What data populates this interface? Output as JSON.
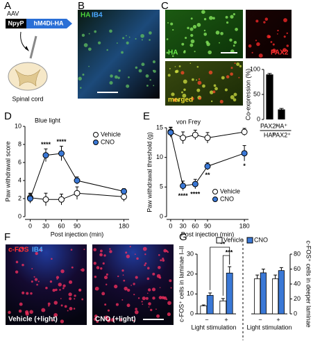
{
  "figure": {
    "panel_labels": [
      "A",
      "B",
      "C",
      "D",
      "E",
      "F",
      "G"
    ],
    "panel_a": {
      "vector": "AAV",
      "promoter": "NpyP",
      "construct": "hM4Di-HA",
      "target": "Spinal cord"
    },
    "panel_b": {
      "stain_1": "HA",
      "stain_2": "IB4"
    },
    "panel_c": {
      "image_1": "HA",
      "image_2": "PAX2",
      "image_3": "merged"
    },
    "panel_f": {
      "stain_1": "c-FOS",
      "stain_2": "IB4",
      "image_1": "Vehicle (+light)",
      "image_2": "CNO (+light)"
    }
  },
  "chart_data": [
    {
      "type": "bar",
      "ylabel": "Co-expression (%)",
      "color": "#000000",
      "categories": [
        {
          "top": "PAX2⁺",
          "bottom": "HA⁺"
        },
        {
          "top": "HA⁺",
          "bottom": "PAX2⁺"
        }
      ],
      "values": [
        90,
        20
      ],
      "errors": [
        2,
        2
      ],
      "ylim": [
        0,
        100
      ],
      "yticks": [
        0,
        50,
        100
      ]
    },
    {
      "type": "line",
      "title": "Blue light",
      "xlabel": "Post injection (min)",
      "ylabel": "Paw withdrawal score",
      "x": [
        0,
        30,
        60,
        90,
        180
      ],
      "xlim": [
        -10,
        190
      ],
      "xticks": [
        0,
        30,
        60,
        90,
        180
      ],
      "ylim": [
        0,
        10
      ],
      "yticks": [
        0,
        2,
        4,
        6,
        8,
        10
      ],
      "legend": "upper right",
      "series": [
        {
          "name": "Vehicle",
          "color": "#ffffff",
          "values": [
            2.1,
            1.9,
            1.9,
            2.6,
            2.2
          ],
          "errors": [
            0.5,
            0.7,
            0.6,
            0.7,
            0.5
          ]
        },
        {
          "name": "CNO",
          "color": "#3a78d6",
          "values": [
            2.0,
            6.8,
            7.0,
            4.0,
            2.8
          ],
          "errors": [
            0.5,
            0.7,
            0.8,
            0.4,
            0.3
          ],
          "annotations": [
            null,
            "****",
            "****",
            null,
            null
          ]
        }
      ]
    },
    {
      "type": "line",
      "title": "von Frey",
      "xlabel": "Post injection (min)",
      "ylabel": "Paw withdrawal threshold (g)",
      "x": [
        0,
        30,
        60,
        90,
        180
      ],
      "xlim": [
        -10,
        190
      ],
      "xticks": [
        0,
        30,
        60,
        90,
        180
      ],
      "ylim": [
        0,
        15
      ],
      "yticks": [
        0,
        5,
        10,
        15
      ],
      "legend": "lower right",
      "series": [
        {
          "name": "Vehicle",
          "color": "#ffffff",
          "values": [
            14.3,
            13.3,
            13.8,
            13.3,
            14.3
          ],
          "errors": [
            0.8,
            1.0,
            0.8,
            0.9,
            0.6
          ]
        },
        {
          "name": "CNO",
          "color": "#3a78d6",
          "values": [
            14.2,
            5.2,
            5.5,
            8.5,
            10.7
          ],
          "errors": [
            0.8,
            0.8,
            0.8,
            0.6,
            1.3
          ],
          "annotations": [
            null,
            "****",
            "****",
            "**",
            "*"
          ]
        }
      ]
    },
    {
      "type": "grouped_bar",
      "xlabel": "Light stimulation",
      "ylabel": "c-FOS⁺ cells in laminae I–II",
      "categories": [
        "−",
        "+"
      ],
      "ylim": [
        0,
        30
      ],
      "yticks": [
        0,
        10,
        20,
        30
      ],
      "legend": "top",
      "comparisons": [
        "**",
        "***"
      ],
      "series": [
        {
          "name": "Vehicle",
          "color": "#ffffff",
          "values": [
            4,
            6.5
          ],
          "errors": [
            0.5,
            1.2
          ]
        },
        {
          "name": "CNO",
          "color": "#3a78d6",
          "values": [
            9.3,
            20.5
          ],
          "errors": [
            1.2,
            3.2
          ]
        }
      ]
    },
    {
      "type": "grouped_bar",
      "xlabel": "Light stimulation",
      "ylabel": "c-FOS⁺ cells in deeper laminae",
      "categories": [
        "−",
        "+"
      ],
      "ylim": [
        0,
        80
      ],
      "yticks": [
        0,
        20,
        40,
        60,
        80
      ],
      "y_axis_side": "right",
      "series": [
        {
          "color": "#ffffff",
          "values": [
            47,
            47
          ],
          "errors": [
            5,
            5
          ]
        },
        {
          "color": "#3a78d6",
          "values": [
            55,
            58
          ],
          "errors": [
            5,
            4
          ]
        }
      ]
    }
  ]
}
